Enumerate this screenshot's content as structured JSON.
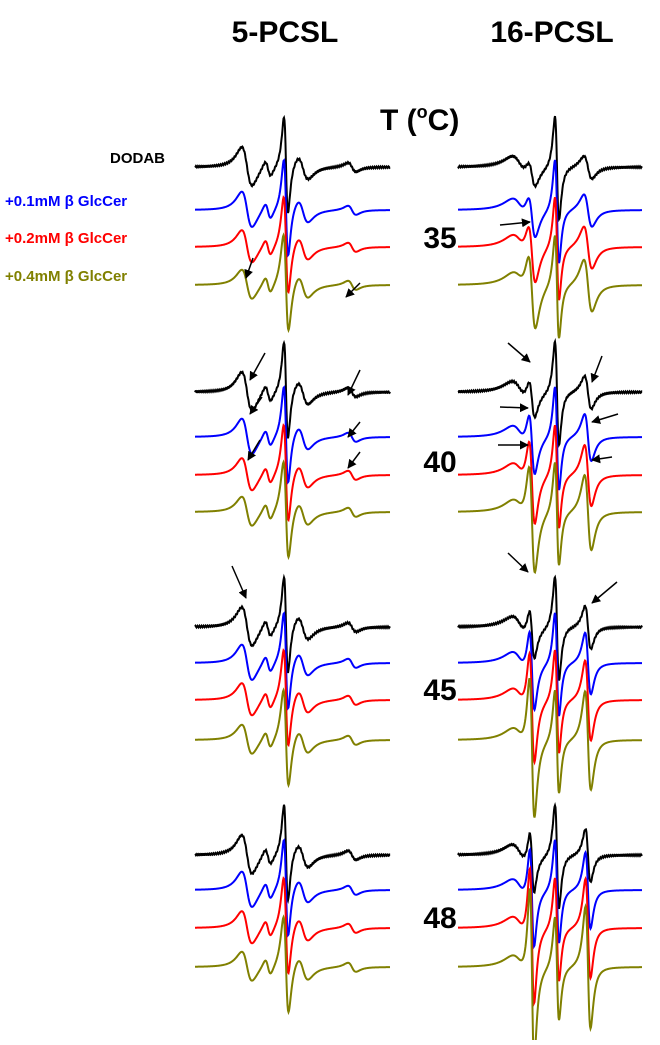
{
  "columns": [
    {
      "title": "5-PCSL"
    },
    {
      "title": "16-PCSL"
    }
  ],
  "temperature_header": {
    "prefix": "T (",
    "degree": "o",
    "suffix": "C)"
  },
  "temperatures": [
    35,
    40,
    45,
    48
  ],
  "samples": [
    {
      "name": "DODAB",
      "color": "#000000"
    },
    {
      "name": "+0.1mM β GlcCer",
      "color": "#0000ff"
    },
    {
      "name": "+0.2mM β GlcCer",
      "color": "#ff0000"
    },
    {
      "name": "+0.4mM β GlcCer",
      "color": "#808000"
    }
  ]
}
